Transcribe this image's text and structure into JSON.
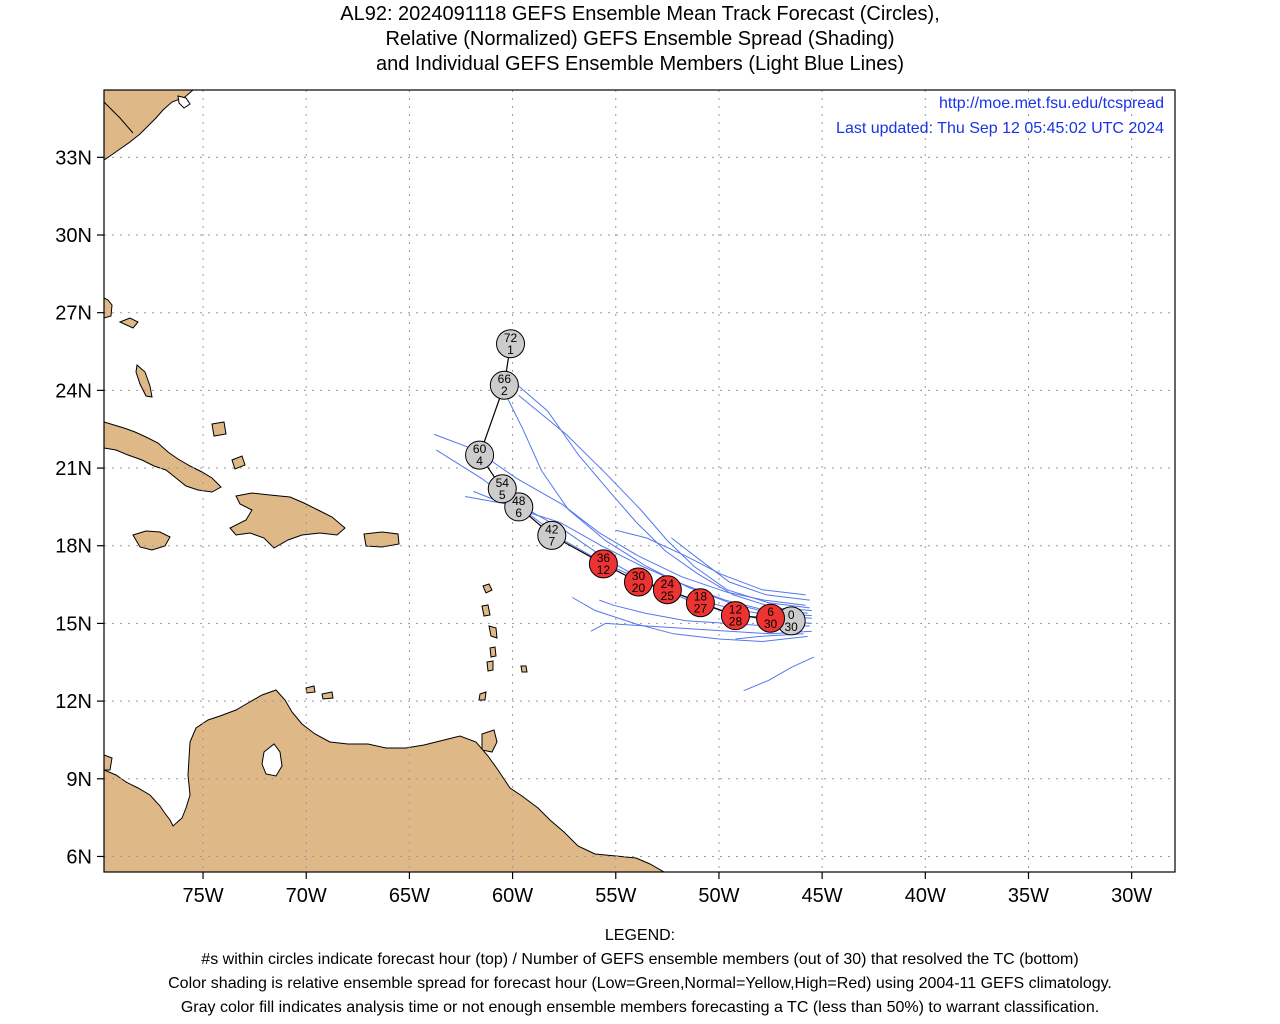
{
  "title": {
    "line1": "AL92: 2024091118 GEFS Ensemble Mean Track Forecast (Circles),",
    "line2": "Relative (Normalized) GEFS Ensemble Spread (Shading)",
    "line3": "and Individual GEFS Ensemble Members (Light Blue Lines)"
  },
  "info": {
    "url": "http://moe.met.fsu.edu/tcspread",
    "updated": "Last updated: Thu Sep 12 05:45:02 UTC 2024"
  },
  "axes": {
    "lat_labels": [
      {
        "value": 6,
        "text": "6N"
      },
      {
        "value": 9,
        "text": "9N"
      },
      {
        "value": 12,
        "text": "12N"
      },
      {
        "value": 15,
        "text": "15N"
      },
      {
        "value": 18,
        "text": "18N"
      },
      {
        "value": 21,
        "text": "21N"
      },
      {
        "value": 24,
        "text": "24N"
      },
      {
        "value": 27,
        "text": "27N"
      },
      {
        "value": 30,
        "text": "30N"
      },
      {
        "value": 33,
        "text": "33N"
      }
    ],
    "lon_labels": [
      {
        "value": -75,
        "text": "75W"
      },
      {
        "value": -70,
        "text": "70W"
      },
      {
        "value": -65,
        "text": "65W"
      },
      {
        "value": -60,
        "text": "60W"
      },
      {
        "value": -55,
        "text": "55W"
      },
      {
        "value": -50,
        "text": "50W"
      },
      {
        "value": -45,
        "text": "45W"
      },
      {
        "value": -40,
        "text": "40W"
      },
      {
        "value": -35,
        "text": "35W"
      },
      {
        "value": -30,
        "text": "30W"
      }
    ],
    "lon_range": [
      -79.8,
      -27.9
    ],
    "lat_range": [
      5.4,
      35.6
    ]
  },
  "colors": {
    "land": "#deb887",
    "ocean": "#ffffff",
    "member_track": "#5577ee",
    "mean_track": "#000000",
    "high_spread": "#ee3333",
    "no_class": "#cccccc",
    "info_text": "#1a33e6"
  },
  "track_points": [
    {
      "hour": "0",
      "members": "30",
      "lon": -46.5,
      "lat": 15.1,
      "fill": "gray"
    },
    {
      "hour": "6",
      "members": "30",
      "lon": -47.5,
      "lat": 15.2,
      "fill": "red"
    },
    {
      "hour": "12",
      "members": "28",
      "lon": -49.2,
      "lat": 15.3,
      "fill": "red"
    },
    {
      "hour": "18",
      "members": "27",
      "lon": -50.9,
      "lat": 15.8,
      "fill": "red"
    },
    {
      "hour": "24",
      "members": "25",
      "lon": -52.5,
      "lat": 16.3,
      "fill": "red"
    },
    {
      "hour": "30",
      "members": "20",
      "lon": -53.9,
      "lat": 16.6,
      "fill": "red"
    },
    {
      "hour": "36",
      "members": "12",
      "lon": -55.6,
      "lat": 17.3,
      "fill": "red"
    },
    {
      "hour": "42",
      "members": "7",
      "lon": -58.1,
      "lat": 18.4,
      "fill": "gray"
    },
    {
      "hour": "48",
      "members": "6",
      "lon": -59.7,
      "lat": 19.5,
      "fill": "gray"
    },
    {
      "hour": "54",
      "members": "5",
      "lon": -60.5,
      "lat": 20.2,
      "fill": "gray"
    },
    {
      "hour": "60",
      "members": "4",
      "lon": -61.6,
      "lat": 21.5,
      "fill": "gray"
    },
    {
      "hour": "66",
      "members": "2",
      "lon": -60.4,
      "lat": 24.2,
      "fill": "gray"
    },
    {
      "hour": "72",
      "members": "1",
      "lon": -60.1,
      "lat": 25.8,
      "fill": "gray"
    }
  ],
  "member_tracks": [
    [
      [
        -45.5,
        15.2
      ],
      [
        -47.5,
        15.3
      ],
      [
        -49.5,
        15.6
      ],
      [
        -51.5,
        16.0
      ],
      [
        -53.5,
        16.6
      ],
      [
        -55.5,
        17.3
      ],
      [
        -57.5,
        18.2
      ],
      [
        -59.5,
        19.4
      ],
      [
        -61.5,
        20.6
      ],
      [
        -63.7,
        21.7
      ]
    ],
    [
      [
        -45.5,
        15.0
      ],
      [
        -47.5,
        15.1
      ],
      [
        -49.5,
        15.4
      ],
      [
        -51.5,
        15.9
      ],
      [
        -53.5,
        16.6
      ],
      [
        -55.5,
        17.5
      ],
      [
        -57.5,
        18.6
      ],
      [
        -59.5,
        19.5
      ],
      [
        -62.3,
        19.9
      ]
    ],
    [
      [
        -45.5,
        15.3
      ],
      [
        -47.5,
        15.4
      ],
      [
        -49.5,
        15.8
      ],
      [
        -51.5,
        16.4
      ],
      [
        -53.5,
        17.2
      ],
      [
        -55.5,
        18.2
      ],
      [
        -57.3,
        19.4
      ],
      [
        -58.6,
        20.9
      ],
      [
        -59.5,
        22.5
      ],
      [
        -60.5,
        24.1
      ]
    ],
    [
      [
        -45.5,
        15.5
      ],
      [
        -47.3,
        15.6
      ],
      [
        -49.3,
        16.1
      ],
      [
        -51.0,
        16.9
      ],
      [
        -52.6,
        17.8
      ],
      [
        -54.0,
        18.9
      ],
      [
        -55.2,
        20.0
      ],
      [
        -56.8,
        21.5
      ],
      [
        -58.3,
        23.2
      ],
      [
        -59.9,
        24.3
      ]
    ],
    [
      [
        -45.6,
        15.6
      ],
      [
        -47.6,
        15.8
      ],
      [
        -49.6,
        16.3
      ],
      [
        -51.2,
        17.2
      ],
      [
        -52.5,
        18.2
      ],
      [
        -53.8,
        19.4
      ],
      [
        -55.5,
        20.8
      ],
      [
        -57.4,
        22.3
      ],
      [
        -59.7,
        23.8
      ]
    ],
    [
      [
        -45.6,
        15.9
      ],
      [
        -47.7,
        16.1
      ],
      [
        -49.5,
        16.6
      ],
      [
        -51.0,
        17.5
      ],
      [
        -52.3,
        18.3
      ]
    ],
    [
      [
        -45.8,
        16.1
      ],
      [
        -47.9,
        16.3
      ],
      [
        -49.9,
        16.9
      ],
      [
        -51.6,
        17.6
      ],
      [
        -53.5,
        18.3
      ],
      [
        -55.0,
        18.6
      ]
    ],
    [
      [
        -45.6,
        14.9
      ],
      [
        -47.6,
        14.9
      ],
      [
        -49.6,
        15.0
      ],
      [
        -51.6,
        15.1
      ],
      [
        -53.6,
        15.4
      ],
      [
        -55.1,
        15.7
      ],
      [
        -55.8,
        15.9
      ]
    ],
    [
      [
        -45.5,
        14.7
      ],
      [
        -47.5,
        14.6
      ],
      [
        -49.5,
        14.7
      ],
      [
        -51.5,
        14.8
      ],
      [
        -53.5,
        14.9
      ],
      [
        -55.5,
        15.0
      ],
      [
        -56.2,
        14.7
      ]
    ],
    [
      [
        -45.7,
        14.5
      ],
      [
        -47.9,
        14.3
      ],
      [
        -50.0,
        14.4
      ],
      [
        -52.2,
        14.6
      ],
      [
        -54.1,
        15.0
      ],
      [
        -56.0,
        15.5
      ],
      [
        -57.1,
        16.0
      ]
    ],
    [
      [
        -45.9,
        14.6
      ],
      [
        -48.0,
        14.5
      ],
      [
        -49.2,
        14.4
      ]
    ],
    [
      [
        -45.4,
        13.7
      ],
      [
        -46.5,
        13.3
      ],
      [
        -47.6,
        12.8
      ],
      [
        -48.8,
        12.4
      ]
    ],
    [
      [
        -45.8,
        15.7
      ],
      [
        -47.8,
        15.9
      ],
      [
        -49.6,
        16.2
      ],
      [
        -51.8,
        16.8
      ],
      [
        -53.9,
        17.6
      ],
      [
        -55.8,
        18.5
      ],
      [
        -57.6,
        19.6
      ],
      [
        -59.8,
        20.6
      ],
      [
        -61.8,
        21.7
      ],
      [
        -63.8,
        22.3
      ]
    ],
    [
      [
        -45.7,
        15.4
      ],
      [
        -47.7,
        15.5
      ],
      [
        -49.7,
        15.9
      ],
      [
        -51.7,
        16.5
      ],
      [
        -53.7,
        17.2
      ],
      [
        -55.7,
        18.0
      ],
      [
        -57.7,
        18.9
      ],
      [
        -59.7,
        19.4
      ],
      [
        -61.9,
        20.1
      ]
    ]
  ],
  "legend": {
    "heading": "LEGEND:",
    "line1": "#s within circles indicate forecast hour (top) / Number of GEFS ensemble members (out of 30) that resolved the TC (bottom)",
    "line2": "Color shading is relative ensemble spread for forecast hour (Low=Green,Normal=Yellow,High=Red) using 2004-11 GEFS climatology.",
    "line3": "Gray color fill indicates analysis time or not enough ensemble members forecasting a TC (less than 50%) to warrant classification."
  }
}
